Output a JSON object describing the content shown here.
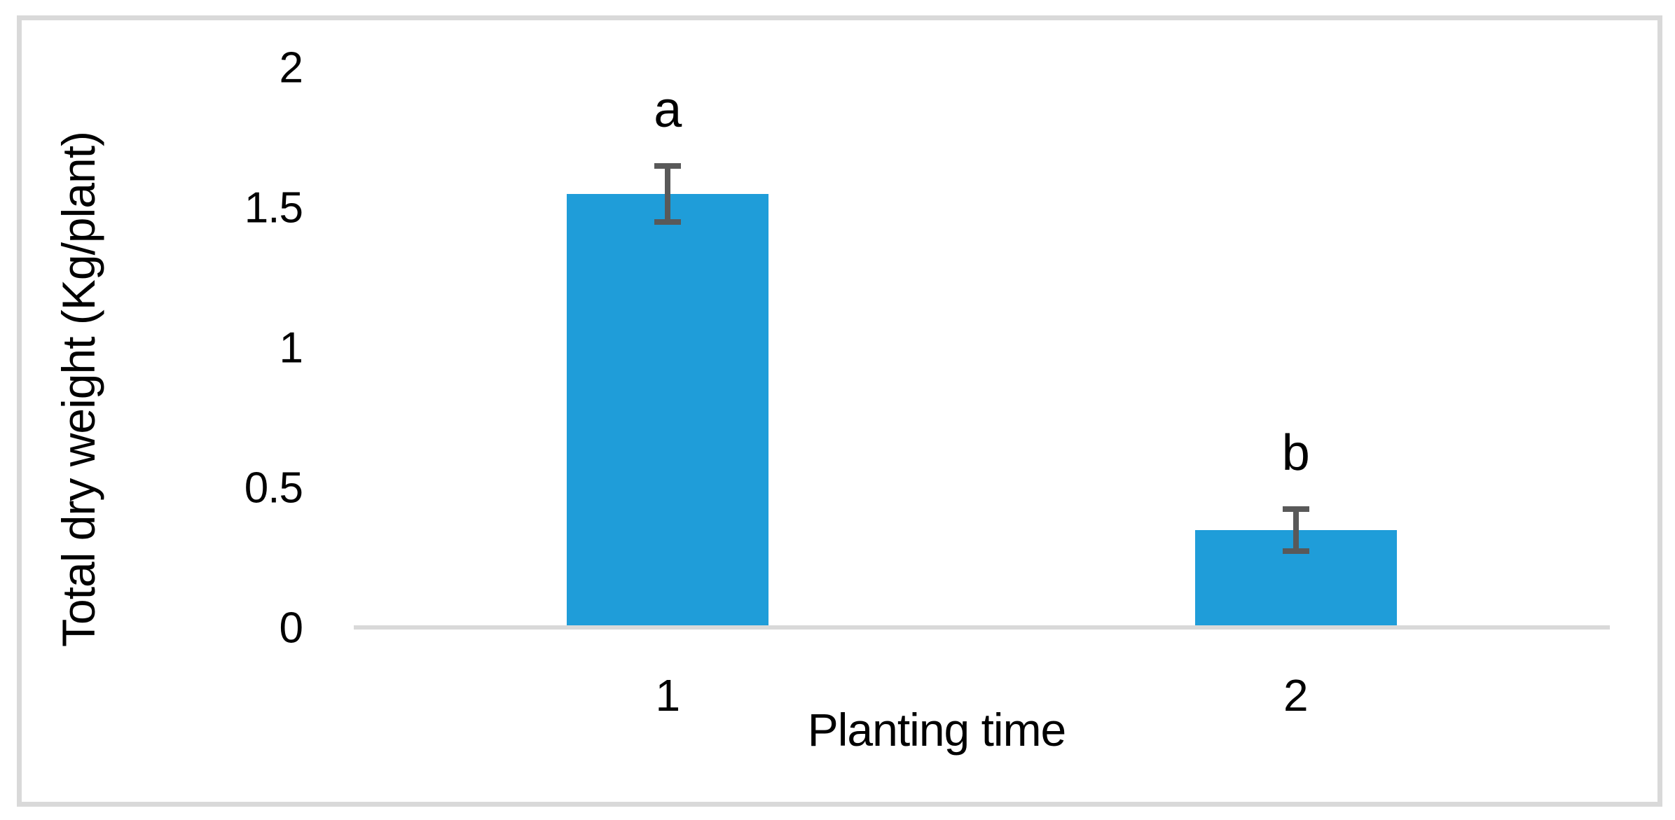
{
  "figure": {
    "background": "#FFFFFF",
    "border_color": "#D9D9D9"
  },
  "chart_data": {
    "type": "bar",
    "title": "",
    "xlabel": "Planting time",
    "ylabel": "Total dry weight (Kg/plant)",
    "categories": [
      "1",
      "2"
    ],
    "values": [
      1.55,
      0.35
    ],
    "errors": [
      0.1,
      0.075
    ],
    "sig_labels": [
      "a",
      "b"
    ],
    "ylim": [
      0,
      2
    ],
    "yticks": [
      "0",
      "0.5",
      "1",
      "1.5",
      "2"
    ],
    "grid": false,
    "legend": "none",
    "bar_color": "#1F9DD9",
    "error_bar_color": "#595959",
    "axis_line_color": "#D9D9D9",
    "text_color": "#000000"
  }
}
